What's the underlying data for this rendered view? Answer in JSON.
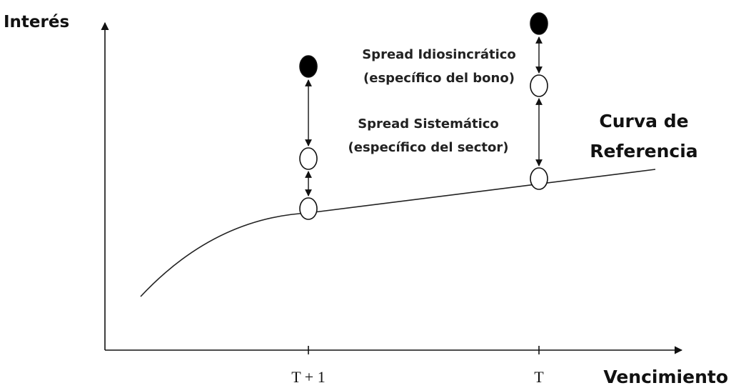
{
  "axes": {
    "y_label": "Interés",
    "x_label": "Vencimiento",
    "x_ticks": [
      "T + 1",
      "T"
    ]
  },
  "annotations": {
    "idiosyncratic": [
      "Spread Idiosincrático",
      "(específico del bono)"
    ],
    "systematic": [
      "Spread Sistemático",
      "(específico del sector)"
    ],
    "curve": [
      "Curva de",
      "Referencia"
    ]
  }
}
